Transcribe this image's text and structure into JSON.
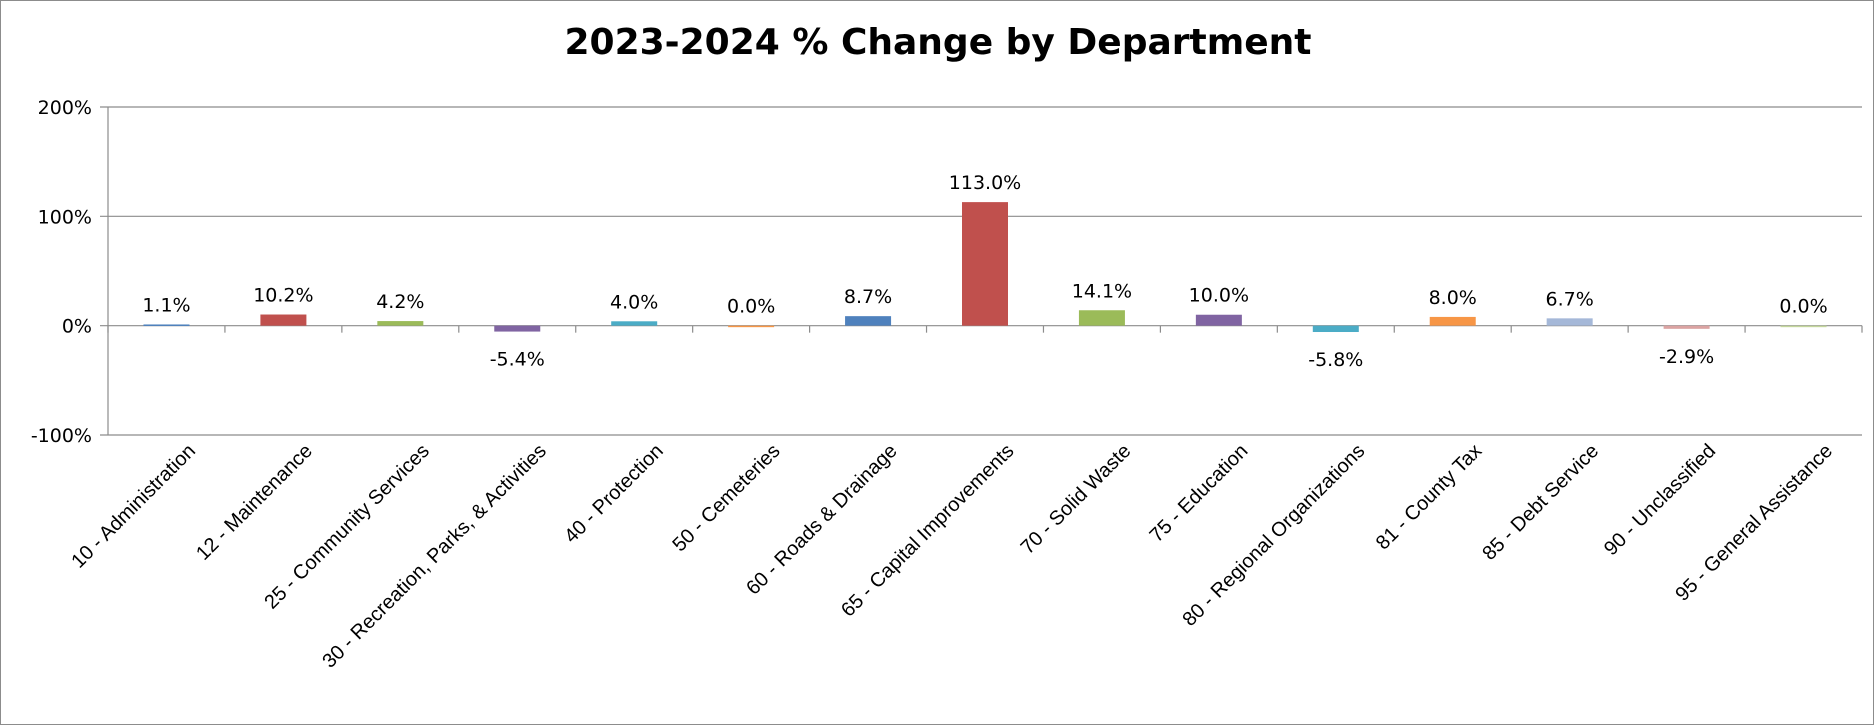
{
  "chart_data": {
    "type": "bar",
    "title": "2023-2024 % Change by Department",
    "xlabel": "",
    "ylabel": "",
    "ylim": [
      -100,
      200
    ],
    "yticks": [
      "200%",
      "100%",
      "0%",
      "-100%"
    ],
    "ytick_values": [
      200,
      100,
      0,
      -100
    ],
    "grid": true,
    "legend": "none",
    "categories": [
      "10 - Administration",
      "12 - Maintenance",
      "25 - Community Services",
      "30 - Recreation, Parks, & Activities",
      "40 - Protection",
      "50 - Cemeteries",
      "60 - Roads & Drainage",
      "65 - Capital Improvements",
      "70 - Solid Waste",
      "75 - Education",
      "80 - Regional Organizations",
      "81 - County Tax",
      "85 - Debt Service",
      "90 - Unclassified",
      "95 - General Assistance"
    ],
    "values": [
      1.1,
      10.2,
      4.2,
      -5.4,
      4.0,
      0.0,
      8.7,
      113.0,
      14.1,
      10.0,
      -5.8,
      8.0,
      6.7,
      -2.9,
      0.0
    ],
    "data_labels": [
      "1.1%",
      "10.2%",
      "4.2%",
      "-5.4%",
      "4.0%",
      "0.0%",
      "8.7%",
      "113.0%",
      "14.1%",
      "10.0%",
      "-5.8%",
      "8.0%",
      "6.7%",
      "-2.9%",
      "0.0%"
    ],
    "colors": [
      "#4f81bd",
      "#c0504d",
      "#9bbb59",
      "#8064a2",
      "#4bacc6",
      "#f79646",
      "#4f81bd",
      "#c0504d",
      "#9bbb59",
      "#8064a2",
      "#4bacc6",
      "#f79646",
      "#a5b8d8",
      "#dba3a2",
      "#c3d69b"
    ]
  }
}
